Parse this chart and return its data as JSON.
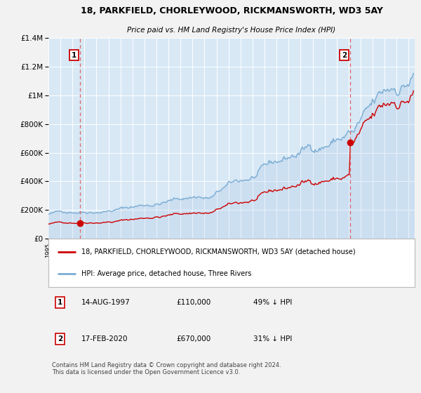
{
  "title1": "18, PARKFIELD, CHORLEYWOOD, RICKMANSWORTH, WD3 5AY",
  "title2": "Price paid vs. HM Land Registry's House Price Index (HPI)",
  "legend_red": "18, PARKFIELD, CHORLEYWOOD, RICKMANSWORTH, WD3 5AY (detached house)",
  "legend_blue": "HPI: Average price, detached house, Three Rivers",
  "sale1_date": "14-AUG-1997",
  "sale1_price": "£110,000",
  "sale1_hpi": "49% ↓ HPI",
  "sale1_year": 1997.62,
  "sale1_value": 110000,
  "sale2_date": "17-FEB-2020",
  "sale2_price": "£670,000",
  "sale2_hpi": "31% ↓ HPI",
  "sale2_year": 2020.13,
  "sale2_value": 670000,
  "xmin": 1995.0,
  "xmax": 2025.5,
  "ymin": 0,
  "ymax": 1400000,
  "background_color": "#d8e8f5",
  "grid_color": "#ffffff",
  "red_color": "#cc0000",
  "blue_color": "#7aadd4",
  "blue_fill": "#aac8e8",
  "outer_bg": "#f2f2f2",
  "footnote": "Contains HM Land Registry data © Crown copyright and database right 2024.\nThis data is licensed under the Open Government Licence v3.0."
}
